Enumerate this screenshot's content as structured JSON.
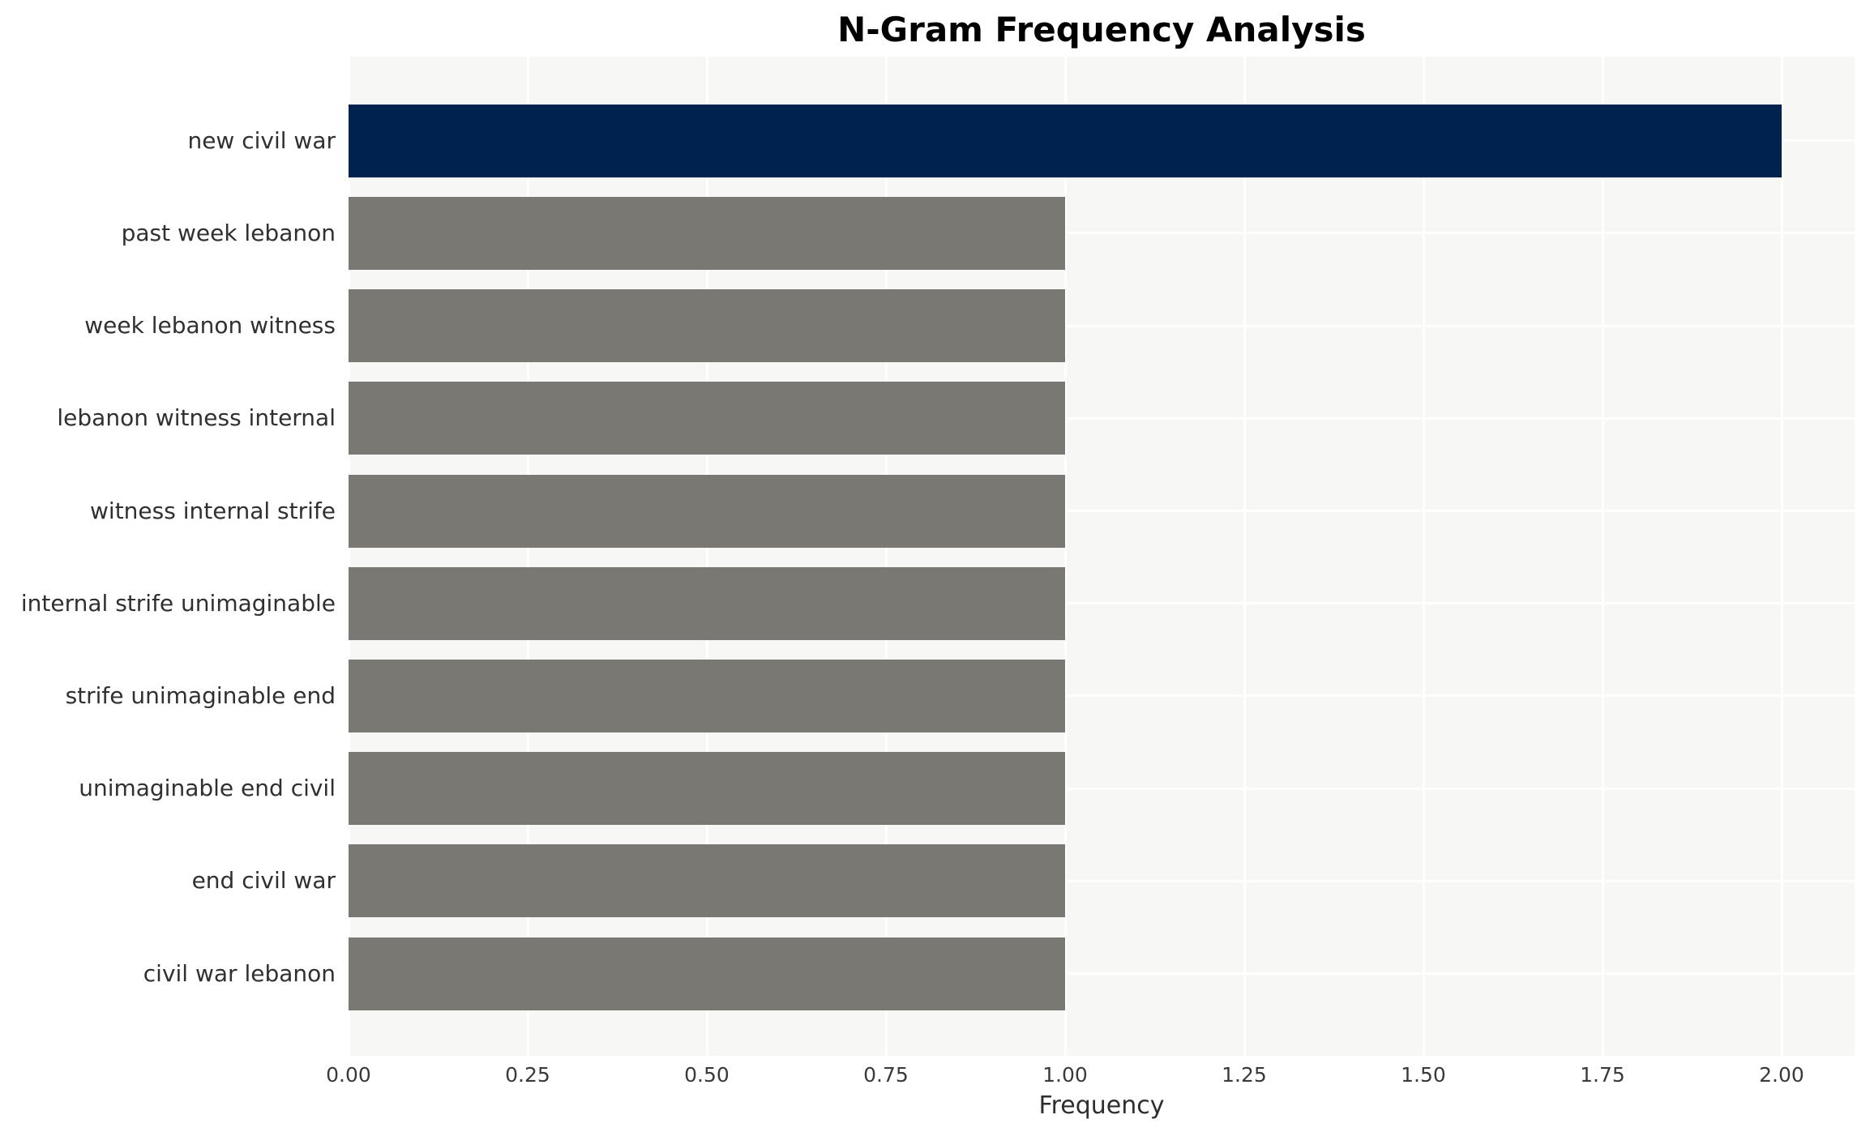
{
  "chart_data": {
    "type": "bar",
    "orientation": "horizontal",
    "title": "N-Gram Frequency Analysis",
    "xlabel": "Frequency",
    "ylabel": "",
    "categories": [
      "new civil war",
      "past week lebanon",
      "week lebanon witness",
      "lebanon witness internal",
      "witness internal strife",
      "internal strife unimaginable",
      "strife unimaginable end",
      "unimaginable end civil",
      "end civil war",
      "civil war lebanon"
    ],
    "values": [
      2,
      1,
      1,
      1,
      1,
      1,
      1,
      1,
      1,
      1
    ],
    "xlim": [
      0,
      2.1
    ],
    "x_tick_values": [
      0,
      0.25,
      0.5,
      0.75,
      1.0,
      1.25,
      1.5,
      1.75,
      2.0
    ],
    "x_tick_labels": [
      "0.00",
      "0.25",
      "0.50",
      "0.75",
      "1.00",
      "1.25",
      "1.50",
      "1.75",
      "2.00"
    ],
    "grid": true,
    "legend": false,
    "colors": {
      "bar_highlight": "#00224E",
      "bar_default": "#7A7873",
      "plot_background": "#F7F7F6",
      "gridline": "#FFFFFF",
      "tick_text": "#3a3a3a",
      "title_text": "#000000"
    },
    "bar_colors": [
      "#00224E",
      "#7A7873",
      "#7A7873",
      "#7A7873",
      "#7A7873",
      "#7A7873",
      "#7A7873",
      "#7A7873",
      "#7A7873",
      "#7A7873"
    ]
  }
}
